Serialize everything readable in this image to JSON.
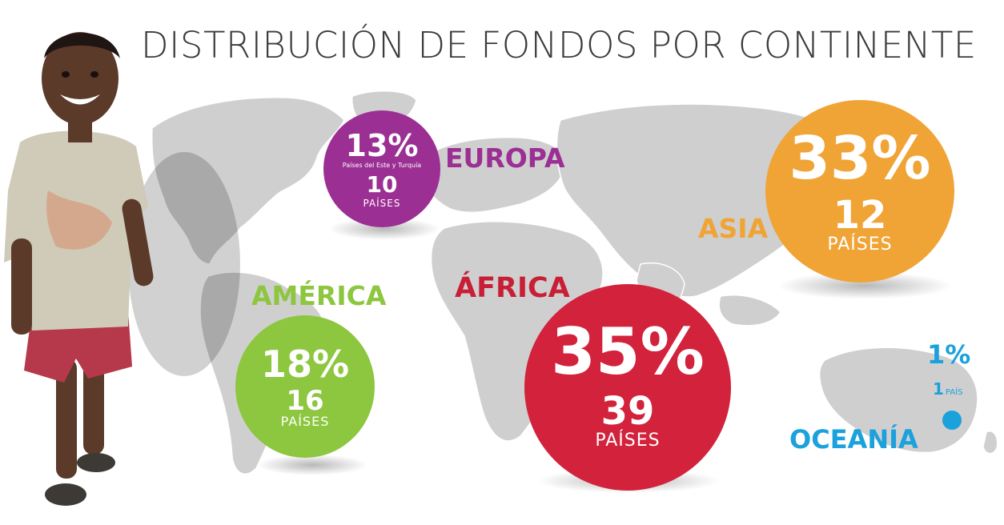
{
  "chart_data": {
    "type": "bubble",
    "title": "DISTRIBUCIÓN DE FONDOS POR CONTINENTE",
    "unit_label": "PAÍSES",
    "series": [
      {
        "continent": "EUROPA",
        "percent": 13,
        "percent_label": "13%",
        "note": "Países del Este y Turquía",
        "countries": 10,
        "countries_label": "10",
        "unit": "PAÍSES",
        "color": "#9b2f93"
      },
      {
        "continent": "ASIA",
        "percent": 33,
        "percent_label": "33%",
        "countries": 12,
        "countries_label": "12",
        "unit": "PAÍSES",
        "color": "#f0a436"
      },
      {
        "continent": "AMÉRICA",
        "percent": 18,
        "percent_label": "18%",
        "countries": 16,
        "countries_label": "16",
        "unit": "PAÍSES",
        "color": "#8dc63f"
      },
      {
        "continent": "ÁFRICA",
        "percent": 35,
        "percent_label": "35%",
        "countries": 39,
        "countries_label": "39",
        "unit": "PAÍSES",
        "color": "#d2223c"
      },
      {
        "continent": "OCEANÍA",
        "percent": 1,
        "percent_label": "1%",
        "countries": 1,
        "countries_label": "1",
        "unit": "PAÍS",
        "color": "#1ba1dc"
      }
    ]
  },
  "colors": {
    "map": "#cfcfcf",
    "map_border": "#ffffff",
    "title": "#3b3b3b"
  },
  "illustration": "smiling-child-photo"
}
